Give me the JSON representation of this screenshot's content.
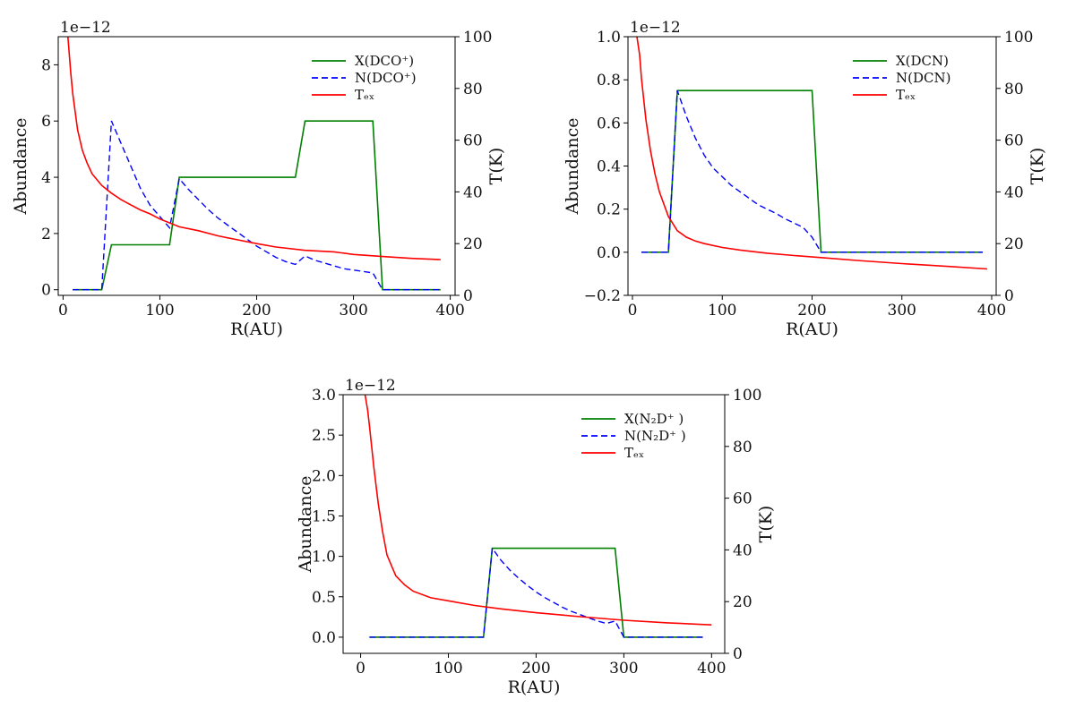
{
  "chart_data": [
    {
      "type": "line",
      "xlabel": "R(AU)",
      "ylabel": "Abundance",
      "y2label": "T(K)",
      "offset_text": "1e−12",
      "xlim": [
        -5,
        405
      ],
      "ylim": [
        -0.2,
        9
      ],
      "y2lim": [
        0,
        100
      ],
      "xticks": [
        0,
        100,
        200,
        300,
        400
      ],
      "xtick_labels": [
        "0",
        "100",
        "200",
        "300",
        "400"
      ],
      "yticks": [
        0,
        2,
        4,
        6,
        8
      ],
      "ytick_labels": [
        "0",
        "2",
        "4",
        "6",
        "8"
      ],
      "y2ticks": [
        0,
        20,
        40,
        60,
        80,
        100
      ],
      "y2tick_labels": [
        "0",
        "20",
        "40",
        "60",
        "80",
        "100"
      ],
      "legend": "top-right",
      "grid": false,
      "series": [
        {
          "name": "X(DCO⁺)",
          "axis": "left",
          "color": "#008000",
          "dash": "solid",
          "x": [
            10,
            40,
            50,
            110,
            120,
            240,
            250,
            320,
            330,
            390
          ],
          "y": [
            0,
            0,
            1.6,
            1.6,
            4.0,
            4.0,
            6.0,
            6.0,
            0,
            0
          ]
        },
        {
          "name": "N(DCO⁺)",
          "axis": "left",
          "color": "#0000ff",
          "dash": "dashed",
          "x": [
            10,
            40,
            50,
            60,
            70,
            80,
            90,
            100,
            110,
            120,
            130,
            140,
            150,
            160,
            170,
            180,
            190,
            200,
            210,
            220,
            230,
            240,
            250,
            260,
            270,
            280,
            290,
            300,
            310,
            320,
            330,
            340,
            350,
            360,
            370,
            380,
            390
          ],
          "y": [
            0,
            0,
            6.0,
            5.2,
            4.4,
            3.6,
            3.0,
            2.6,
            2.2,
            3.95,
            3.55,
            3.2,
            2.85,
            2.55,
            2.3,
            2.05,
            1.8,
            1.55,
            1.35,
            1.15,
            1.0,
            0.9,
            1.2,
            1.05,
            0.95,
            0.85,
            0.75,
            0.7,
            0.65,
            0.6,
            0,
            0,
            0,
            0,
            0,
            0,
            0
          ]
        },
        {
          "name": "Tₑₓ",
          "axis": "right",
          "color": "#ff0000",
          "dash": "solid",
          "x": [
            5,
            8,
            10,
            15,
            20,
            25,
            30,
            40,
            50,
            60,
            70,
            80,
            90,
            100,
            120,
            140,
            160,
            180,
            200,
            220,
            250,
            280,
            300,
            330,
            360,
            390
          ],
          "y": [
            100,
            86,
            78,
            64,
            56,
            51,
            47,
            42.5,
            39.5,
            37,
            35,
            33,
            31.5,
            29.5,
            26.5,
            25,
            23,
            21.5,
            20,
            18.7,
            17.4,
            16.8,
            15.8,
            15,
            14.3,
            13.8
          ]
        }
      ]
    },
    {
      "type": "line",
      "xlabel": "R(AU)",
      "ylabel": "Abundance",
      "y2label": "T(K)",
      "offset_text": "1e−12",
      "xlim": [
        -5,
        405
      ],
      "ylim": [
        -0.2,
        1.0
      ],
      "y2lim": [
        0,
        100
      ],
      "xticks": [
        0,
        100,
        200,
        300,
        400
      ],
      "xtick_labels": [
        "0",
        "100",
        "200",
        "300",
        "400"
      ],
      "yticks": [
        -0.2,
        0,
        0.2,
        0.4,
        0.6,
        0.8,
        1.0
      ],
      "ytick_labels": [
        "−0.2",
        "0.0",
        "0.2",
        "0.4",
        "0.6",
        "0.8",
        "1.0"
      ],
      "y2ticks": [
        0,
        20,
        40,
        60,
        80,
        100
      ],
      "y2tick_labels": [
        "0",
        "20",
        "40",
        "60",
        "80",
        "100"
      ],
      "legend": "top-right",
      "grid": false,
      "series": [
        {
          "name": "X(DCN)",
          "axis": "left",
          "color": "#008000",
          "dash": "solid",
          "x": [
            10,
            40,
            50,
            200,
            210,
            390
          ],
          "y": [
            0,
            0,
            0.75,
            0.75,
            0,
            0
          ]
        },
        {
          "name": "N(DCN)",
          "axis": "left",
          "color": "#0000ff",
          "dash": "dashed",
          "x": [
            10,
            40,
            50,
            60,
            70,
            80,
            90,
            100,
            110,
            120,
            130,
            140,
            150,
            160,
            170,
            180,
            190,
            200,
            210,
            220,
            390
          ],
          "y": [
            0,
            0,
            0.75,
            0.63,
            0.53,
            0.45,
            0.39,
            0.35,
            0.31,
            0.28,
            0.25,
            0.22,
            0.2,
            0.18,
            0.155,
            0.135,
            0.115,
            0.07,
            0,
            0,
            0
          ]
        },
        {
          "name": "Tₑₓ",
          "axis": "right",
          "color": "#ff0000",
          "dash": "solid",
          "x": [
            5,
            8,
            10,
            15,
            20,
            25,
            30,
            40,
            50,
            60,
            70,
            80,
            100,
            120,
            150,
            180,
            210,
            250,
            300,
            350,
            395
          ],
          "y": [
            100,
            93,
            84,
            68,
            56,
            47,
            40,
            30.5,
            25,
            22.5,
            21,
            20,
            18.5,
            17.5,
            16.3,
            15.4,
            14.6,
            13.5,
            12.3,
            11.2,
            10.2
          ]
        }
      ]
    },
    {
      "type": "line",
      "xlabel": "R(AU)",
      "ylabel": "Abundance",
      "y2label": "T(K)",
      "offset_text": "1e−12",
      "xlim": [
        -20,
        415
      ],
      "ylim": [
        -0.2,
        3.0
      ],
      "y2lim": [
        0,
        100
      ],
      "xticks": [
        0,
        100,
        200,
        300,
        400
      ],
      "xtick_labels": [
        "0",
        "100",
        "200",
        "300",
        "400"
      ],
      "yticks": [
        0,
        0.5,
        1.0,
        1.5,
        2.0,
        2.5,
        3.0
      ],
      "ytick_labels": [
        "0.0",
        "0.5",
        "1.0",
        "1.5",
        "2.0",
        "2.5",
        "3.0"
      ],
      "y2ticks": [
        0,
        20,
        40,
        60,
        80,
        100
      ],
      "y2tick_labels": [
        "0",
        "20",
        "40",
        "60",
        "80",
        "100"
      ],
      "legend": "top-right",
      "grid": false,
      "series": [
        {
          "name": "X(N₂D⁺ )",
          "axis": "left",
          "color": "#008000",
          "dash": "solid",
          "x": [
            10,
            140,
            150,
            290,
            300,
            390
          ],
          "y": [
            0,
            0,
            1.1,
            1.1,
            0,
            0
          ]
        },
        {
          "name": "N(N₂D⁺ )",
          "axis": "left",
          "color": "#0000ff",
          "dash": "dashed",
          "x": [
            10,
            140,
            150,
            160,
            170,
            180,
            190,
            200,
            210,
            220,
            230,
            240,
            250,
            260,
            270,
            280,
            290,
            300,
            390
          ],
          "y": [
            0,
            0,
            1.1,
            0.95,
            0.83,
            0.73,
            0.64,
            0.56,
            0.49,
            0.43,
            0.37,
            0.32,
            0.28,
            0.24,
            0.2,
            0.17,
            0.2,
            0,
            0
          ]
        },
        {
          "name": "Tₑₓ",
          "axis": "right",
          "color": "#ff0000",
          "dash": "solid",
          "x": [
            5,
            8,
            10,
            15,
            20,
            25,
            30,
            40,
            50,
            60,
            80,
            100,
            130,
            160,
            200,
            250,
            300,
            350,
            400
          ],
          "y": [
            100,
            94,
            88,
            72,
            58,
            47,
            38,
            30,
            26.5,
            24,
            21.5,
            20.3,
            18.5,
            17.2,
            15.7,
            14.2,
            12.8,
            11.8,
            11
          ]
        }
      ]
    }
  ]
}
